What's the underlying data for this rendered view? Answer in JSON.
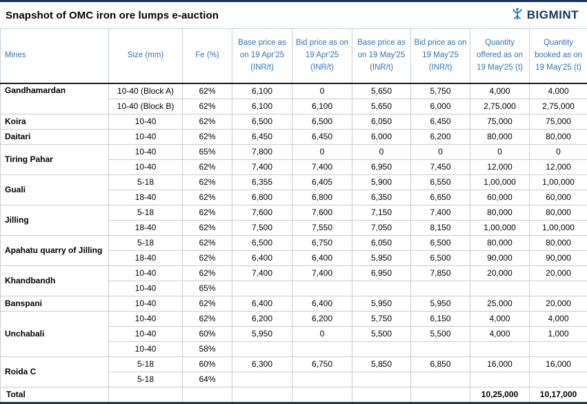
{
  "brand": {
    "name": "BIGMINT",
    "color": "#17365D",
    "icon_color": "#2E75B6"
  },
  "chart_data": {
    "type": "table",
    "title": "Snapshot of OMC iron ore lumps e-auction",
    "columns": [
      "Mines",
      "Size (mm)",
      "Fe (%)",
      "Base price as on 19 Apr'25 (INR/t)",
      "Bid price as on 19 Apr'25 (INR/t)",
      "Base price as on 19 May'25 (INR/t)",
      "Bid price as on 19 May'25 (INR/t)",
      "Quantity offered as on 19 May'25 (t)",
      "Quantity booked as on 19 May'25 (t)"
    ],
    "groups": [
      {
        "mine": "Gandhamardan",
        "valign": "top",
        "rows": [
          [
            "10-40 (Block A)",
            "62%",
            "6,100",
            "0",
            "5,650",
            "5,750",
            "4,000",
            "4,000"
          ],
          [
            "10-40 (Block B)",
            "62%",
            "6,100",
            "6,100",
            "5,650",
            "6,000",
            "2,75,000",
            "2,75,000"
          ]
        ]
      },
      {
        "mine": "Koira",
        "rows": [
          [
            "10-40",
            "62%",
            "6,500",
            "6,500",
            "6,050",
            "6,450",
            "75,000",
            "75,000"
          ]
        ]
      },
      {
        "mine": "Daitari",
        "rows": [
          [
            "10-40",
            "62%",
            "6,450",
            "6,450",
            "6,000",
            "6,200",
            "80,000",
            "80,000"
          ]
        ]
      },
      {
        "mine": "Tiring Pahar",
        "rows": [
          [
            "10-40",
            "65%",
            "7,800",
            "0",
            "0",
            "0",
            "0",
            "0"
          ],
          [
            "10-40",
            "62%",
            "7,400",
            "7,400",
            "6,950",
            "7,450",
            "12,000",
            "12,000"
          ]
        ]
      },
      {
        "mine": "Guali",
        "rows": [
          [
            "5-18",
            "62%",
            "6,355",
            "6,405",
            "5,900",
            "6,550",
            "1,00,000",
            "1,00,000"
          ],
          [
            "18-40",
            "62%",
            "6,800",
            "6,800",
            "6,350",
            "6,650",
            "60,000",
            "60,000"
          ]
        ]
      },
      {
        "mine": "Jilling",
        "rows": [
          [
            "5-18",
            "62%",
            "7,600",
            "7,600",
            "7,150",
            "7,400",
            "80,000",
            "80,000"
          ],
          [
            "18-40",
            "62%",
            "7,500",
            "7,550",
            "7,050",
            "8,150",
            "1,00,000",
            "1,00,000"
          ]
        ]
      },
      {
        "mine": "Apahatu quarry of Jilling",
        "rows": [
          [
            "5-18",
            "62%",
            "6,500",
            "6,750",
            "6,050",
            "6,500",
            "80,000",
            "80,000"
          ],
          [
            "18-40",
            "62%",
            "6,400",
            "6,400",
            "5,950",
            "6,500",
            "90,000",
            "90,000"
          ]
        ]
      },
      {
        "mine": "Khandbandh",
        "rows": [
          [
            "10-40",
            "62%",
            "7,400",
            "7,400",
            "6,950",
            "7,850",
            "20,000",
            "20,000"
          ],
          [
            "10-40",
            "65%",
            "",
            "",
            "",
            "",
            "",
            ""
          ]
        ]
      },
      {
        "mine": "Banspani",
        "rows": [
          [
            "10-40",
            "62%",
            "6,400",
            "6,400",
            "5,950",
            "5,950",
            "25,000",
            "20,000"
          ]
        ]
      },
      {
        "mine": "Unchabali",
        "rows": [
          [
            "10-40",
            "62%",
            "6,200",
            "6,200",
            "5,750",
            "6,150",
            "4,000",
            "4,000"
          ],
          [
            "10-40",
            "60%",
            "5,950",
            "0",
            "5,500",
            "5,500",
            "4,000",
            "1,000"
          ],
          [
            "10-40",
            "58%",
            "",
            "",
            "",
            "",
            "",
            ""
          ]
        ]
      },
      {
        "mine": "Roida C",
        "rows": [
          [
            "5-18",
            "60%",
            "6,300",
            "6,750",
            "5,850",
            "6,850",
            "16,000",
            "16,000"
          ],
          [
            "5-18",
            "64%",
            "",
            "",
            "",
            "",
            "",
            ""
          ]
        ]
      }
    ],
    "total": {
      "label": "Total",
      "offered": "10,25,000",
      "booked": "10,17,000"
    }
  }
}
